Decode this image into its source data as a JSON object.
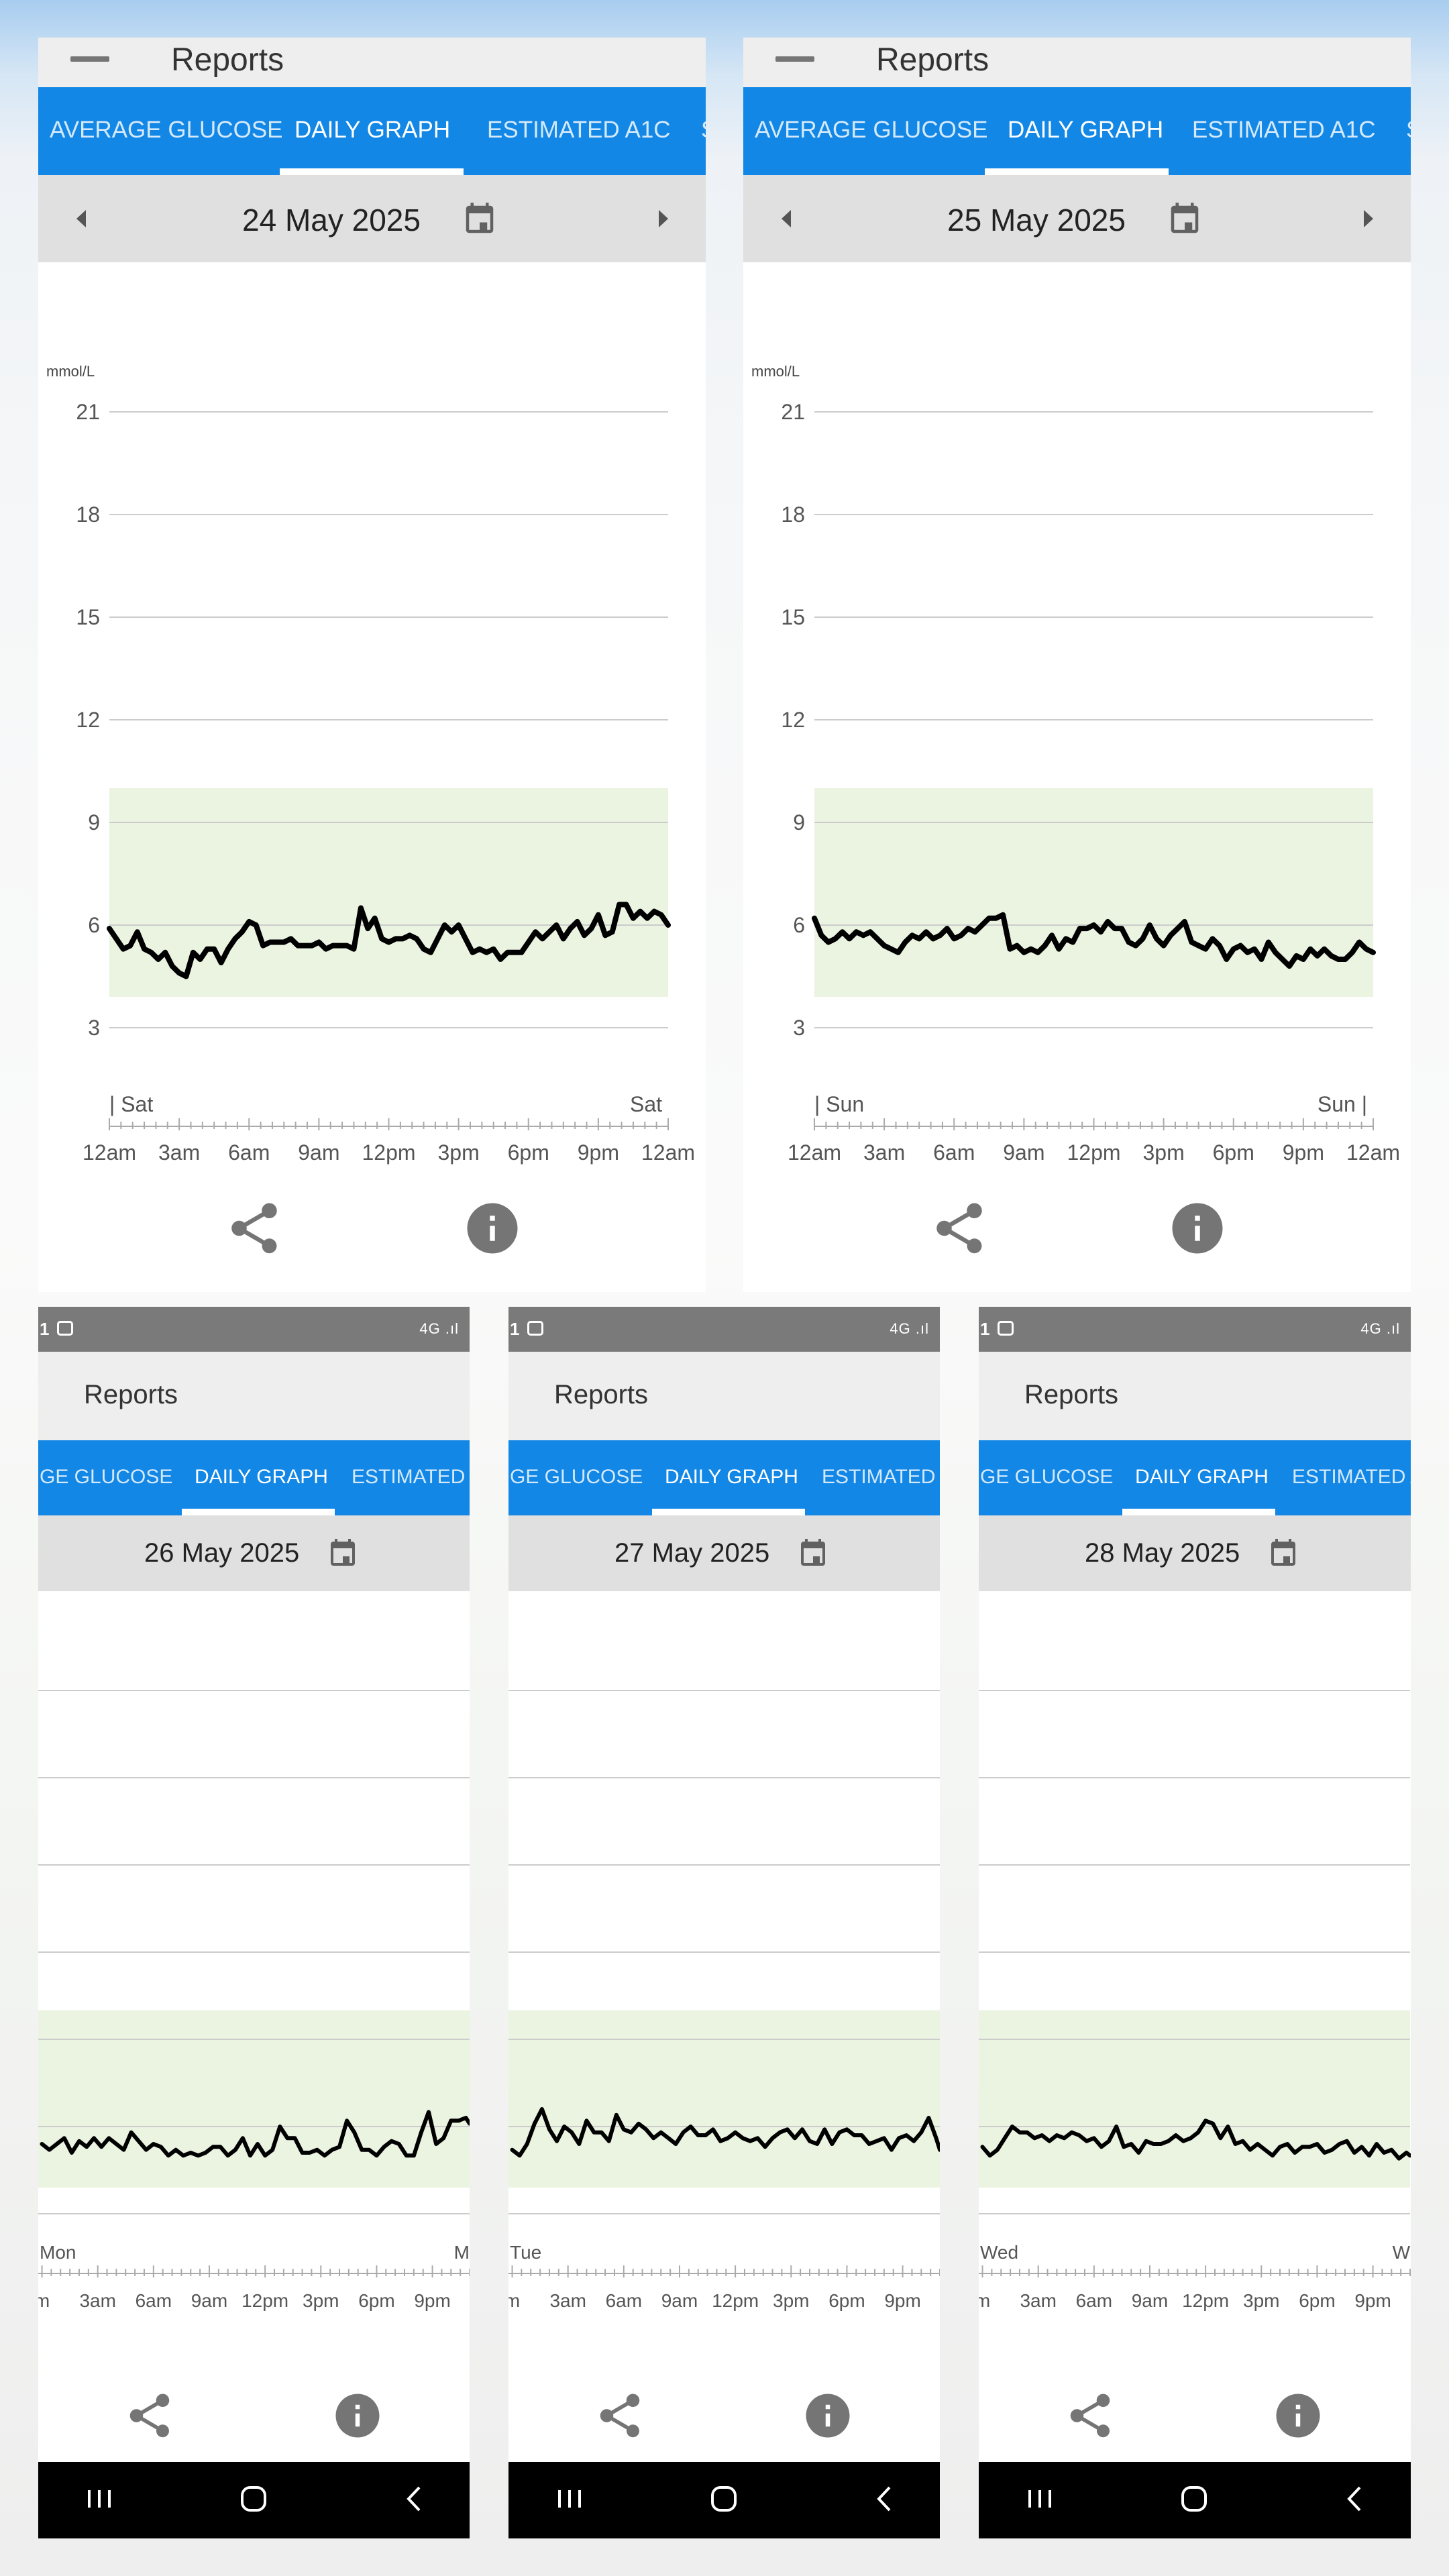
{
  "colors": {
    "tab_bar": "#1387e5",
    "date_bar": "#e0e0e0",
    "app_bar": "#eeeeee",
    "target_band": "#eaf4e1",
    "glucose_line": "#000000",
    "gridline": "#cccccc"
  },
  "tab_labels": [
    "AVERAGE GLUCOSE",
    "DAILY GRAPH",
    "ESTIMATED A1C"
  ],
  "top_panels": [
    {
      "app_title": "Reports",
      "tabs": [
        "AVERAGE GLUCOSE",
        "DAILY GRAPH",
        "ESTIMATED A1C",
        "S"
      ],
      "active_tab": "DAILY GRAPH",
      "date": "24 May 2025",
      "unit_label": "mmol/L",
      "day_start": "| Sat",
      "day_end": "Sat",
      "icons": [
        "menu-icon",
        "prev-day-icon",
        "calendar-icon",
        "next-day-icon",
        "share-icon",
        "info-icon"
      ]
    },
    {
      "app_title": "Reports",
      "tabs": [
        "AVERAGE GLUCOSE",
        "DAILY GRAPH",
        "ESTIMATED A1C",
        "S"
      ],
      "active_tab": "DAILY GRAPH",
      "date": "25 May 2025",
      "unit_label": "mmol/L",
      "day_start": "| Sun",
      "day_end": "Sun |",
      "icons": [
        "menu-icon",
        "prev-day-icon",
        "calendar-icon",
        "next-day-icon",
        "share-icon",
        "info-icon"
      ]
    }
  ],
  "bottom_panels": [
    {
      "status_time": "1",
      "status_signal": "4G .ıl",
      "app_title": "Reports",
      "tabs": [
        "GE GLUCOSE",
        "DAILY GRAPH",
        "ESTIMATED A"
      ],
      "active_tab": "DAILY GRAPH",
      "date": "26 May 2025",
      "day_start": "Mon",
      "day_end": "M",
      "x_ticks": [
        "m",
        "3am",
        "6am",
        "9am",
        "12pm",
        "3pm",
        "6pm",
        "9pm"
      ],
      "icons": [
        "calendar-icon",
        "share-icon",
        "info-icon",
        "recent-apps-icon",
        "home-icon",
        "back-icon"
      ]
    },
    {
      "status_time": "1",
      "status_signal": "4G .ıl",
      "app_title": "Reports",
      "tabs": [
        "GE GLUCOSE",
        "DAILY GRAPH",
        "ESTIMATED A"
      ],
      "active_tab": "DAILY GRAPH",
      "date": "27 May 2025",
      "day_start": "Tue",
      "day_end": "",
      "x_ticks": [
        "m",
        "3am",
        "6am",
        "9am",
        "12pm",
        "3pm",
        "6pm",
        "9pm"
      ],
      "icons": [
        "calendar-icon",
        "share-icon",
        "info-icon",
        "recent-apps-icon",
        "home-icon",
        "back-icon"
      ]
    },
    {
      "status_time": "1",
      "status_signal": "4G .ıl",
      "app_title": "Reports",
      "tabs": [
        "GE GLUCOSE",
        "DAILY GRAPH",
        "ESTIMATED A"
      ],
      "active_tab": "DAILY GRAPH",
      "date": "28 May 2025",
      "day_start": "Wed",
      "day_end": "W",
      "x_ticks": [
        "m",
        "3am",
        "6am",
        "9am",
        "12pm",
        "3pm",
        "6pm",
        "9pm"
      ],
      "icons": [
        "calendar-icon",
        "share-icon",
        "info-icon",
        "recent-apps-icon",
        "home-icon",
        "back-icon"
      ]
    }
  ],
  "chart_data": [
    {
      "type": "line",
      "title": "24 May 2025",
      "ylabel": "mmol/L",
      "xlabel": "",
      "ylim": [
        1.5,
        21
      ],
      "yticks": [
        21,
        18,
        15,
        12,
        9,
        6,
        3
      ],
      "xticks": [
        "12am",
        "3am",
        "6am",
        "9am",
        "12pm",
        "3pm",
        "6pm",
        "9pm",
        "12am"
      ],
      "xlim_hours": [
        0,
        24
      ],
      "target_range": [
        3.9,
        10.0
      ],
      "grid": true,
      "series": [
        {
          "x": [
            0,
            0.3,
            0.6,
            0.9,
            1.2,
            1.5,
            1.8,
            2.1,
            2.4,
            2.7,
            3.0,
            3.3,
            3.6,
            3.9,
            4.2,
            4.5,
            4.8,
            5.1,
            5.4,
            5.7,
            6.0,
            6.3,
            6.6,
            6.9,
            7.2,
            7.5,
            7.8,
            8.1,
            8.4,
            8.7,
            9.0,
            9.3,
            9.6,
            9.9,
            10.2,
            10.5,
            10.8,
            11.1,
            11.4,
            11.7,
            12.0,
            12.3,
            12.6,
            12.9,
            13.2,
            13.5,
            13.8,
            14.1,
            14.4,
            14.7,
            15.0,
            15.3,
            15.6,
            15.9,
            16.2,
            16.5,
            16.8,
            17.1,
            17.4,
            17.7,
            18.0,
            18.3,
            18.6,
            18.9,
            19.2,
            19.5,
            19.8,
            20.1,
            20.4,
            20.7,
            21.0,
            21.3,
            21.6,
            21.9,
            22.2,
            22.5,
            22.8,
            23.1,
            23.4,
            23.7,
            24.0
          ],
          "y": [
            5.9,
            5.6,
            5.3,
            5.4,
            5.8,
            5.3,
            5.2,
            5.0,
            5.2,
            4.8,
            4.6,
            4.5,
            5.2,
            5.0,
            5.3,
            5.3,
            4.9,
            5.3,
            5.6,
            5.8,
            6.1,
            6.0,
            5.4,
            5.5,
            5.5,
            5.5,
            5.6,
            5.4,
            5.4,
            5.4,
            5.5,
            5.3,
            5.4,
            5.4,
            5.4,
            5.3,
            6.5,
            5.9,
            6.2,
            5.6,
            5.5,
            5.6,
            5.6,
            5.7,
            5.6,
            5.3,
            5.2,
            5.6,
            6.0,
            5.8,
            6.0,
            5.6,
            5.2,
            5.3,
            5.2,
            5.3,
            5.0,
            5.2,
            5.2,
            5.2,
            5.5,
            5.8,
            5.6,
            5.8,
            6.0,
            5.6,
            5.9,
            6.1,
            5.7,
            5.9,
            6.3,
            5.7,
            5.8,
            6.6,
            6.6,
            6.2,
            6.4,
            6.2,
            6.4,
            6.3,
            6.0
          ]
        }
      ]
    },
    {
      "type": "line",
      "title": "25 May 2025",
      "ylabel": "mmol/L",
      "xlabel": "",
      "ylim": [
        1.5,
        21
      ],
      "yticks": [
        21,
        18,
        15,
        12,
        9,
        6,
        3
      ],
      "xticks": [
        "12am",
        "3am",
        "6am",
        "9am",
        "12pm",
        "3pm",
        "6pm",
        "9pm",
        "12am"
      ],
      "xlim_hours": [
        0,
        24
      ],
      "target_range": [
        3.9,
        10.0
      ],
      "grid": true,
      "series": [
        {
          "x": [
            0,
            0.3,
            0.6,
            0.9,
            1.2,
            1.5,
            1.8,
            2.1,
            2.4,
            2.7,
            3.0,
            3.3,
            3.6,
            3.9,
            4.2,
            4.5,
            4.8,
            5.1,
            5.4,
            5.7,
            6.0,
            6.3,
            6.6,
            6.9,
            7.2,
            7.5,
            7.8,
            8.1,
            8.4,
            8.7,
            9.0,
            9.3,
            9.6,
            9.9,
            10.2,
            10.5,
            10.8,
            11.1,
            11.4,
            11.7,
            12.0,
            12.3,
            12.6,
            12.9,
            13.2,
            13.5,
            13.8,
            14.1,
            14.4,
            14.7,
            15.0,
            15.3,
            15.6,
            15.9,
            16.2,
            16.5,
            16.8,
            17.1,
            17.4,
            17.7,
            18.0,
            18.3,
            18.6,
            18.9,
            19.2,
            19.5,
            19.8,
            20.1,
            20.4,
            20.7,
            21.0,
            21.3,
            21.6,
            21.9,
            22.2,
            22.5,
            22.8,
            23.1,
            23.4,
            23.7,
            24.0
          ],
          "y": [
            6.2,
            5.7,
            5.5,
            5.6,
            5.8,
            5.6,
            5.8,
            5.7,
            5.8,
            5.6,
            5.4,
            5.3,
            5.2,
            5.5,
            5.7,
            5.6,
            5.8,
            5.6,
            5.7,
            5.9,
            5.6,
            5.7,
            5.9,
            5.8,
            6.0,
            6.2,
            6.2,
            6.3,
            5.3,
            5.4,
            5.2,
            5.3,
            5.2,
            5.4,
            5.7,
            5.3,
            5.6,
            5.5,
            5.9,
            5.9,
            6.0,
            5.8,
            6.1,
            5.9,
            5.9,
            5.5,
            5.4,
            5.6,
            6.0,
            5.6,
            5.4,
            5.7,
            5.9,
            6.1,
            5.5,
            5.4,
            5.3,
            5.6,
            5.4,
            5.0,
            5.3,
            5.4,
            5.2,
            5.3,
            5.0,
            5.5,
            5.2,
            5.0,
            4.8,
            5.1,
            5.0,
            5.3,
            5.1,
            5.3,
            5.1,
            5.0,
            5.0,
            5.2,
            5.5,
            5.3,
            5.2
          ]
        }
      ]
    },
    {
      "type": "line",
      "title": "26 May 2025",
      "xticks": [
        "m",
        "3am",
        "6am",
        "9am",
        "12pm",
        "3pm",
        "6pm",
        "9pm"
      ],
      "xlim_hours": [
        -0.2,
        23.0
      ],
      "ylim": [
        1.5,
        21
      ],
      "target_range": [
        3.9,
        10.0
      ],
      "grid": true,
      "series": [
        {
          "x": [
            0,
            0.4,
            0.8,
            1.2,
            1.6,
            2.0,
            2.4,
            2.8,
            3.2,
            3.6,
            4.0,
            4.4,
            4.8,
            5.2,
            5.6,
            6.0,
            6.4,
            6.8,
            7.2,
            7.6,
            8.0,
            8.4,
            8.8,
            9.2,
            9.6,
            10.0,
            10.4,
            10.8,
            11.2,
            11.6,
            12.0,
            12.4,
            12.8,
            13.2,
            13.6,
            14.0,
            14.4,
            14.8,
            15.2,
            15.6,
            16.0,
            16.4,
            16.8,
            17.2,
            17.6,
            18.0,
            18.4,
            18.8,
            19.2,
            19.6,
            20.0,
            20.4,
            20.8,
            21.2,
            21.6,
            22.0,
            22.4,
            22.8,
            23.0
          ],
          "y": [
            5.4,
            5.2,
            5.4,
            5.6,
            5.1,
            5.5,
            5.3,
            5.6,
            5.3,
            5.6,
            5.4,
            5.2,
            5.8,
            5.5,
            5.2,
            5.4,
            5.3,
            5.0,
            5.2,
            5.0,
            5.1,
            5.0,
            5.1,
            5.3,
            5.3,
            5.0,
            5.2,
            5.6,
            5.0,
            5.4,
            5.0,
            5.2,
            6.0,
            5.6,
            5.6,
            5.1,
            5.1,
            5.2,
            5.0,
            5.2,
            5.3,
            6.2,
            5.8,
            5.2,
            5.2,
            5.0,
            5.3,
            5.5,
            5.4,
            5.0,
            5.0,
            5.8,
            6.5,
            5.4,
            5.6,
            6.2,
            6.2,
            6.3,
            6.1
          ]
        }
      ]
    },
    {
      "type": "line",
      "title": "27 May 2025",
      "xticks": [
        "m",
        "3am",
        "6am",
        "9am",
        "12pm",
        "3pm",
        "6pm",
        "9pm"
      ],
      "xlim_hours": [
        -0.2,
        23.0
      ],
      "ylim": [
        1.5,
        21
      ],
      "target_range": [
        3.9,
        10.0
      ],
      "grid": true,
      "series": [
        {
          "x": [
            0,
            0.4,
            0.8,
            1.2,
            1.6,
            2.0,
            2.4,
            2.8,
            3.2,
            3.6,
            4.0,
            4.4,
            4.8,
            5.2,
            5.6,
            6.0,
            6.4,
            6.8,
            7.2,
            7.6,
            8.0,
            8.4,
            8.8,
            9.2,
            9.6,
            10.0,
            10.4,
            10.8,
            11.2,
            11.6,
            12.0,
            12.4,
            12.8,
            13.2,
            13.6,
            14.0,
            14.4,
            14.8,
            15.2,
            15.6,
            16.0,
            16.4,
            16.8,
            17.2,
            17.6,
            18.0,
            18.4,
            18.8,
            19.2,
            19.6,
            20.0,
            20.4,
            20.8,
            21.2,
            21.6,
            22.0,
            22.4,
            22.8,
            23.0
          ],
          "y": [
            5.2,
            5.0,
            5.4,
            6.1,
            6.6,
            5.9,
            5.5,
            6.0,
            5.8,
            5.4,
            6.2,
            5.8,
            5.8,
            5.5,
            6.4,
            5.9,
            5.8,
            6.1,
            5.9,
            5.6,
            5.8,
            5.6,
            5.4,
            5.8,
            6.0,
            5.7,
            5.7,
            5.9,
            5.5,
            5.6,
            5.8,
            5.6,
            5.5,
            5.6,
            5.3,
            5.6,
            5.8,
            5.9,
            5.6,
            5.9,
            5.5,
            5.4,
            5.9,
            5.4,
            5.8,
            5.9,
            5.7,
            5.7,
            5.4,
            5.5,
            5.6,
            5.2,
            5.6,
            5.7,
            5.5,
            5.8,
            6.3,
            5.6,
            5.2
          ]
        }
      ]
    },
    {
      "type": "line",
      "title": "28 May 2025",
      "xticks": [
        "m",
        "3am",
        "6am",
        "9am",
        "12pm",
        "3pm",
        "6pm",
        "9pm"
      ],
      "xlim_hours": [
        -0.2,
        23.0
      ],
      "ylim": [
        1.5,
        21
      ],
      "target_range": [
        3.9,
        10.0
      ],
      "grid": true,
      "series": [
        {
          "x": [
            0,
            0.4,
            0.8,
            1.2,
            1.6,
            2.0,
            2.4,
            2.8,
            3.2,
            3.6,
            4.0,
            4.4,
            4.8,
            5.2,
            5.6,
            6.0,
            6.4,
            6.8,
            7.2,
            7.6,
            8.0,
            8.4,
            8.8,
            9.2,
            9.6,
            10.0,
            10.4,
            10.8,
            11.2,
            11.6,
            12.0,
            12.4,
            12.8,
            13.2,
            13.6,
            14.0,
            14.4,
            14.8,
            15.2,
            15.6,
            16.0,
            16.4,
            16.8,
            17.2,
            17.6,
            18.0,
            18.4,
            18.8,
            19.2,
            19.6,
            20.0,
            20.4,
            20.8,
            21.2,
            21.6,
            22.0,
            22.4,
            22.8,
            23.0
          ],
          "y": [
            5.3,
            5.0,
            5.2,
            5.6,
            6.0,
            5.8,
            5.8,
            5.6,
            5.7,
            5.5,
            5.7,
            5.6,
            5.8,
            5.7,
            5.5,
            5.6,
            5.3,
            5.5,
            6.0,
            5.3,
            5.4,
            5.1,
            5.5,
            5.4,
            5.4,
            5.5,
            5.7,
            5.5,
            5.6,
            5.8,
            6.2,
            6.1,
            5.6,
            6.0,
            5.4,
            5.5,
            5.2,
            5.4,
            5.2,
            5.0,
            5.3,
            5.4,
            5.1,
            5.3,
            5.3,
            5.4,
            5.1,
            5.2,
            5.4,
            5.5,
            5.1,
            5.3,
            5.0,
            5.4,
            5.1,
            5.2,
            4.9,
            5.1,
            5.0
          ]
        }
      ]
    }
  ]
}
